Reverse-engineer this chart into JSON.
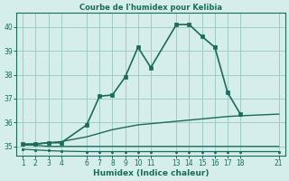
{
  "title": "Courbe de l'humidex pour Kelibia",
  "xlabel": "Humidex (Indice chaleur)",
  "bg_color": "#d5eeeb",
  "grid_color": "#a0ccc8",
  "line_color": "#1a6b5a",
  "xticks": [
    1,
    2,
    3,
    4,
    6,
    7,
    8,
    9,
    10,
    11,
    13,
    14,
    15,
    16,
    17,
    18,
    21
  ],
  "yticks": [
    35,
    36,
    37,
    38,
    39,
    40
  ],
  "ylim": [
    34.6,
    40.6
  ],
  "xlim": [
    0.5,
    21.5
  ],
  "series": [
    {
      "x": [
        1,
        2,
        3,
        4,
        6,
        7,
        8,
        9,
        10,
        11,
        13,
        14,
        15,
        16,
        17,
        18
      ],
      "y": [
        35.1,
        35.1,
        35.15,
        35.15,
        35.9,
        37.1,
        37.15,
        37.9,
        39.15,
        38.3,
        40.1,
        40.1,
        39.6,
        39.15,
        37.25,
        36.35
      ],
      "marker": "s",
      "linewidth": 1.2,
      "markersize": 2.5
    },
    {
      "x": [
        1,
        2,
        3,
        4,
        6,
        7,
        8,
        9,
        10,
        11,
        13,
        14,
        15,
        16,
        17,
        18,
        21
      ],
      "y": [
        35.05,
        35.1,
        35.15,
        35.2,
        35.4,
        35.55,
        35.7,
        35.8,
        35.9,
        35.95,
        36.05,
        36.1,
        36.15,
        36.2,
        36.25,
        36.28,
        36.35
      ],
      "marker": null,
      "linewidth": 1.0,
      "markersize": 0
    },
    {
      "x": [
        1,
        2,
        3,
        4,
        6,
        7,
        8,
        9,
        10,
        11,
        13,
        14,
        15,
        16,
        17,
        18,
        21
      ],
      "y": [
        35.05,
        35.05,
        35.0,
        35.0,
        35.0,
        35.0,
        35.0,
        35.0,
        35.0,
        35.0,
        35.0,
        35.0,
        35.0,
        35.0,
        35.0,
        35.0,
        35.0
      ],
      "marker": null,
      "linewidth": 0.9,
      "markersize": 0
    },
    {
      "x": [
        1,
        2,
        3,
        4,
        6,
        7,
        8,
        9,
        10,
        11,
        13,
        14,
        15,
        16,
        17,
        18,
        21
      ],
      "y": [
        34.88,
        34.85,
        34.82,
        34.8,
        34.78,
        34.78,
        34.78,
        34.78,
        34.78,
        34.78,
        34.78,
        34.78,
        34.78,
        34.78,
        34.78,
        34.78,
        34.78
      ],
      "marker": "s",
      "linewidth": 0.9,
      "markersize": 1.5
    }
  ]
}
